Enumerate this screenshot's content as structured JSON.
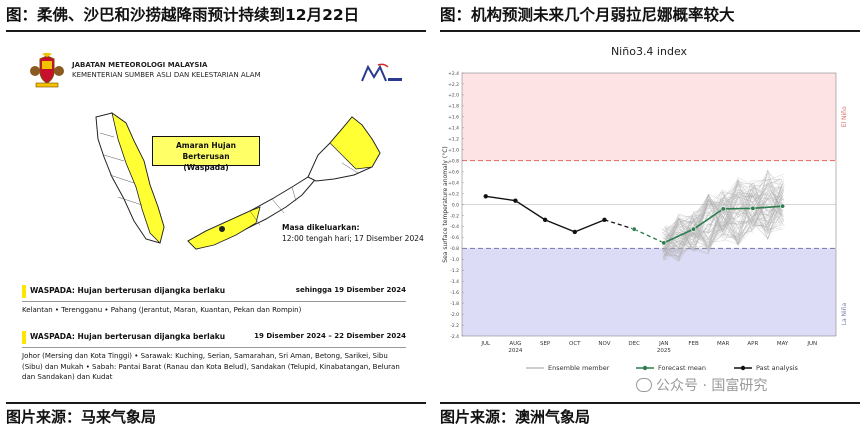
{
  "left": {
    "title": "图：柔佛、沙巴和沙捞越降雨预计持续到12月22日",
    "source": "图片来源：马来气象局",
    "agency_name": "JABATAN METEOROLOGI MALAYSIA",
    "agency_ministry": "KEMENTERIAN SUMBER ASLI DAN KELESTARIAN ALAM",
    "warning_title": "Amaran Hujan Berterusan",
    "warning_level": "(Waspada)",
    "issued_label": "Masa dikeluarkan:",
    "issued_time": "12:00 tengah hari; 17 Disember 2024",
    "warnings": [
      {
        "heading": "WASPADA: Hujan berterusan dijangka berlaku",
        "period": "sehingga 19 Disember 2024",
        "areas": "Kelantan • Terengganu • Pahang (Jerantut, Maran, Kuantan, Pekan dan Rompin)"
      },
      {
        "heading": "WASPADA: Hujan berterusan dijangka berlaku",
        "period": "19 Disember 2024 – 22 Disember 2024",
        "areas": "Johor (Mersing dan Kota Tinggi) • Sarawak: Kuching, Serian, Samarahan, Sri Aman, Betong, Sarikei, Sibu (Sibu) dan Mukah • Sabah: Pantai Barat (Ranau dan Kota Belud), Sandakan (Telupid, Kinabatangan, Beluran dan Sandakan) dan Kudat"
      }
    ],
    "colors": {
      "warning_yellow": "#ffff33",
      "land_grey": "#ffffff",
      "border": "#222222"
    }
  },
  "right": {
    "title": "图：机构预测未来几个月弱拉尼娜概率较大",
    "source": "图片来源：澳洲气象局",
    "watermark": "公众号 · 国富研究"
  },
  "chart_data": {
    "type": "line",
    "title": "Niño3.4 index",
    "ylabel": "Sea surface temperature anomaly (°C)",
    "xlabel": "",
    "x": [
      "JUL",
      "AUG",
      "SEP",
      "OCT",
      "NOV",
      "DEC",
      "JAN",
      "FEB",
      "MAR",
      "APR",
      "MAY",
      "JUN"
    ],
    "x_year_labels": {
      "AUG": "2024",
      "JAN": "2025"
    },
    "ylim": [
      -2.4,
      2.4
    ],
    "yticks": [
      "+2.4",
      "+2.2",
      "+2.0",
      "+1.8",
      "+1.6",
      "+1.4",
      "+1.2",
      "+1.0",
      "+0.8",
      "+0.6",
      "+0.4",
      "+0.2",
      "0.0",
      "-0.2",
      "-0.4",
      "-0.6",
      "-0.8",
      "-1.0",
      "-1.2",
      "-1.4",
      "-1.6",
      "-1.8",
      "-2.0",
      "-2.2",
      "-2.4"
    ],
    "thresholds": {
      "el_nino": 0.8,
      "la_nina": -0.8
    },
    "region_labels": {
      "el_nino": "El Niño",
      "la_nina": "La Niña"
    },
    "series": [
      {
        "name": "Past analysis",
        "x": [
          "JUL",
          "AUG",
          "SEP",
          "OCT",
          "NOV"
        ],
        "values": [
          0.15,
          0.07,
          -0.28,
          -0.5,
          -0.28
        ]
      },
      {
        "name": "Forecast mean",
        "x": [
          "DEC",
          "JAN",
          "FEB",
          "MAR",
          "APR",
          "MAY"
        ],
        "values": [
          -0.45,
          -0.7,
          -0.45,
          -0.08,
          -0.07,
          -0.03
        ]
      },
      {
        "name": "Ensemble member",
        "x": [
          "JAN",
          "FEB",
          "MAR",
          "APR",
          "MAY"
        ],
        "range_low": [
          -1.1,
          -1.0,
          -0.8,
          -0.7,
          -0.6
        ],
        "range_high": [
          -0.3,
          0.0,
          0.4,
          0.6,
          0.7
        ]
      }
    ],
    "legend": [
      "Ensemble member",
      "Forecast mean",
      "Past analysis"
    ],
    "legend_position": "bottom",
    "colors": {
      "el_nino_region": "#fde3e3",
      "la_nina_region": "#dcdcf6",
      "el_nino_line": "#e06666",
      "la_nina_line": "#7777aa",
      "past": "#111111",
      "forecast": "#2e7d4f",
      "ensemble": "#b0b0b0"
    }
  }
}
